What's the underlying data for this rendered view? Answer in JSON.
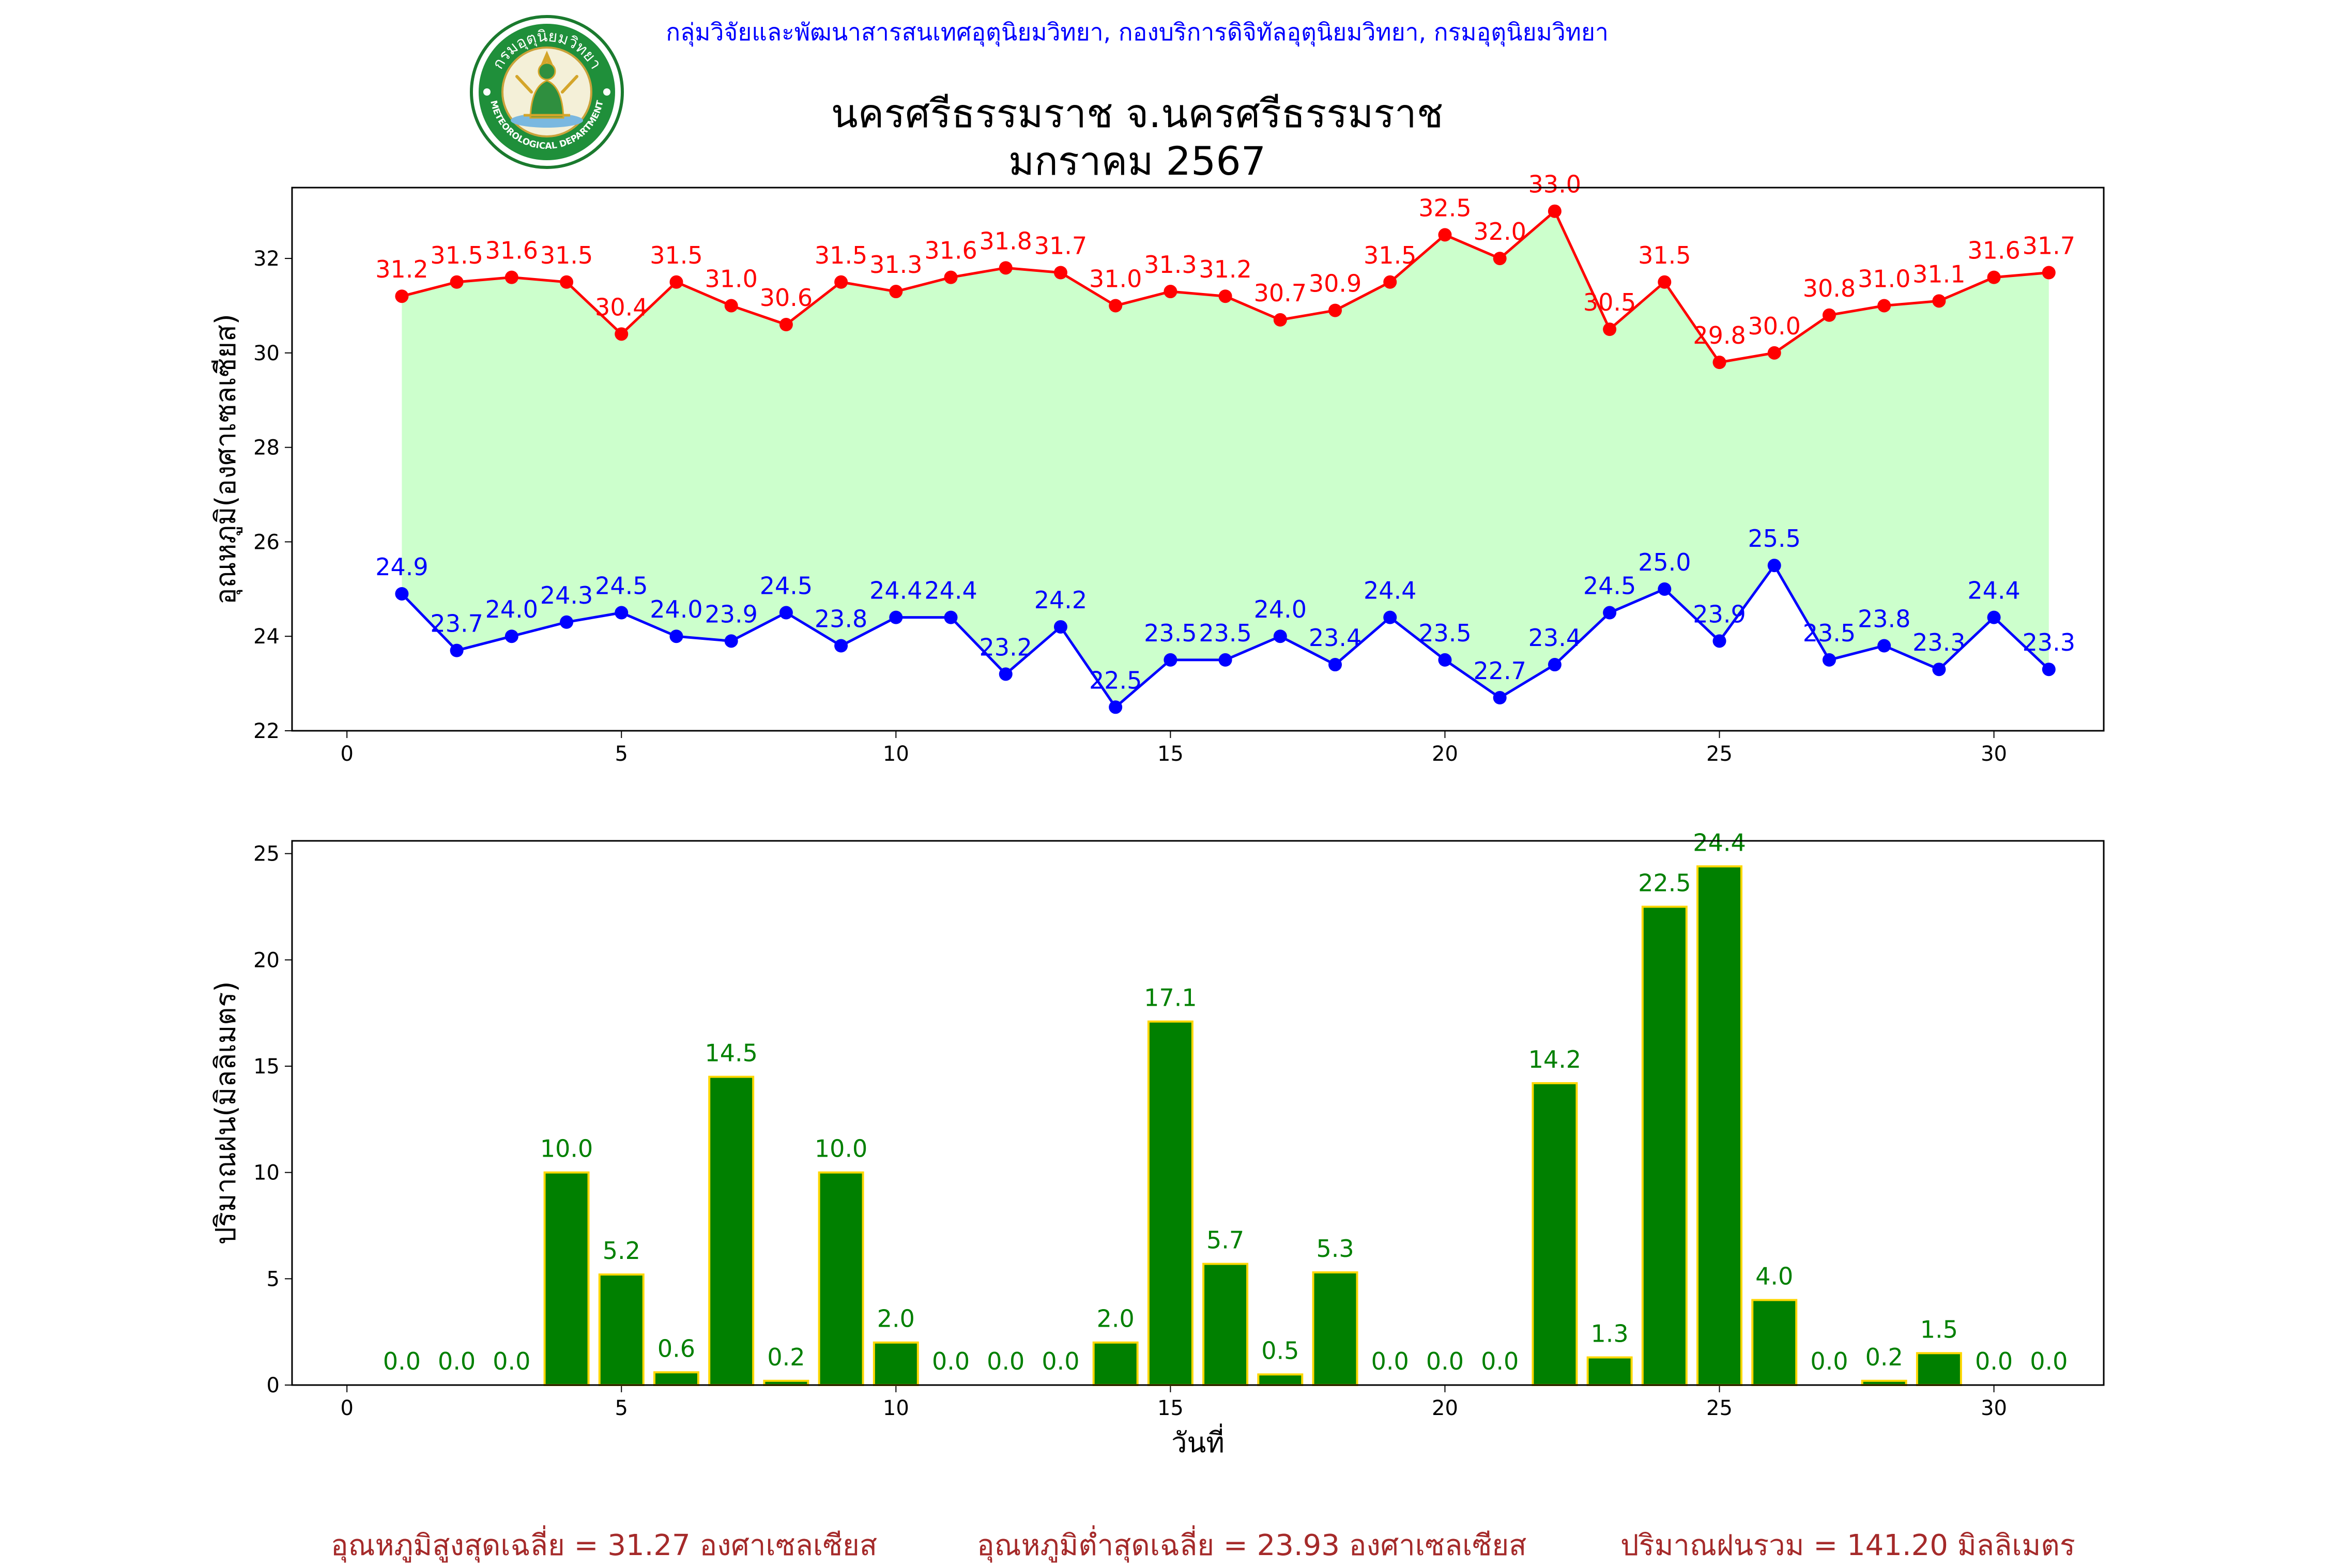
{
  "header": {
    "agency": "กลุ่มวิจัยและพัฒนาสารสนเทศอุตุนิยมวิทยา, กองบริการดิจิทัลอุตุนิยมวิทยา, กรมอุตุนิยมวิทยา",
    "title_line1": "นครศรีธรรมราช จ.นครศรีธรรมราช",
    "title_line2": "มกราคม 2567",
    "logo_text_top": "กรมอุตุนิยมวิทยา",
    "logo_text_bottom": "METEOROLOGICAL DEPARTMENT"
  },
  "chart_data": [
    {
      "type": "line",
      "ylabel": "อุณหภูมิ(องศาเซลเซียส)",
      "xlabel": "",
      "xlim": [
        -1,
        32
      ],
      "ylim": [
        22,
        33.5
      ],
      "xticks": [
        0,
        5,
        10,
        15,
        20,
        25,
        30
      ],
      "yticks": [
        22,
        24,
        26,
        28,
        30,
        32
      ],
      "x": [
        1,
        2,
        3,
        4,
        5,
        6,
        7,
        8,
        9,
        10,
        11,
        12,
        13,
        14,
        15,
        16,
        17,
        18,
        19,
        20,
        21,
        22,
        23,
        24,
        25,
        26,
        27,
        28,
        29,
        30,
        31
      ],
      "fill_between_series": true,
      "fill_color": "#ccffcc",
      "series": [
        {
          "color": "#ff0000",
          "values": [
            31.2,
            31.5,
            31.6,
            31.5,
            30.4,
            31.5,
            31.0,
            30.6,
            31.5,
            31.3,
            31.6,
            31.8,
            31.7,
            31.0,
            31.3,
            31.2,
            30.7,
            30.9,
            31.5,
            32.5,
            32.0,
            33.0,
            30.5,
            31.5,
            29.8,
            30.0,
            30.8,
            31.0,
            31.1,
            31.6,
            31.7
          ],
          "labels": [
            "31.2",
            "31.5",
            "31.6",
            "31.5",
            "30.4",
            "31.5",
            "31.0",
            "30.6",
            "31.5",
            "31.3",
            "31.6",
            "31.8",
            "31.7",
            "31.0",
            "31.3",
            "31.2",
            "30.7",
            "30.9",
            "31.5",
            "32.5",
            "32.0",
            "33.0",
            "30.5",
            "31.5",
            "29.8",
            "30.0",
            "30.8",
            "31.0",
            "31.1",
            "31.6",
            "31.7"
          ]
        },
        {
          "color": "#0000ff",
          "values": [
            24.9,
            23.7,
            24.0,
            24.3,
            24.5,
            24.0,
            23.9,
            24.5,
            23.8,
            24.4,
            24.4,
            23.2,
            24.2,
            22.5,
            23.5,
            23.5,
            24.0,
            23.4,
            24.4,
            23.5,
            22.7,
            23.4,
            24.5,
            25.0,
            23.9,
            25.5,
            23.5,
            23.8,
            23.3,
            24.4,
            23.3
          ],
          "labels": [
            "24.9",
            "23.7",
            "24.0",
            "24.3",
            "24.5",
            "24.0",
            "23.9",
            "24.5",
            "23.8",
            "24.4",
            "24.4",
            "23.2",
            "24.2",
            "22.5",
            "23.5",
            "23.5",
            "24.0",
            "23.4",
            "24.4",
            "23.5",
            "22.7",
            "23.4",
            "24.5",
            "25.0",
            "23.9",
            "25.5",
            "23.5",
            "23.8",
            "23.3",
            "24.4",
            "23.3"
          ]
        }
      ]
    },
    {
      "type": "bar",
      "ylabel": "ปริมาณฝน(มิลลิเมตร)",
      "xlabel": "วันที่",
      "xlim": [
        -1,
        32
      ],
      "ylim": [
        0,
        25.6
      ],
      "xticks": [
        0,
        5,
        10,
        15,
        20,
        25,
        30
      ],
      "yticks": [
        0,
        5,
        10,
        15,
        20,
        25
      ],
      "bar_color": "#008000",
      "bar_edge": "#ffd700",
      "x": [
        1,
        2,
        3,
        4,
        5,
        6,
        7,
        8,
        9,
        10,
        11,
        12,
        13,
        14,
        15,
        16,
        17,
        18,
        19,
        20,
        21,
        22,
        23,
        24,
        25,
        26,
        27,
        28,
        29,
        30,
        31
      ],
      "values": [
        0.0,
        0.0,
        0.0,
        10.0,
        5.2,
        0.6,
        14.5,
        0.2,
        10.0,
        2.0,
        0.0,
        0.0,
        0.0,
        2.0,
        17.1,
        5.7,
        0.5,
        5.3,
        0.0,
        0.0,
        0.0,
        14.2,
        1.3,
        22.5,
        24.4,
        4.0,
        0.0,
        0.2,
        1.5,
        0.0,
        0.0
      ],
      "labels": [
        "0.0",
        "0.0",
        "0.0",
        "10.0",
        "5.2",
        "0.6",
        "14.5",
        "0.2",
        "10.0",
        "2.0",
        "0.0",
        "0.0",
        "0.0",
        "2.0",
        "17.1",
        "5.7",
        "0.5",
        "5.3",
        "0.0",
        "0.0",
        "0.0",
        "14.2",
        "1.3",
        "22.5",
        "24.4",
        "4.0",
        "0.0",
        "0.2",
        "1.5",
        "0.0",
        "0.0"
      ]
    }
  ],
  "footer": {
    "avg_max": "อุณหภูมิสูงสุดเฉลี่ย = 31.27 องศาเซลเซียส",
    "avg_min": "อุณหภูมิต่ำสุดเฉลี่ย = 23.93 องศาเซลเซียส",
    "total_rain": "ปริมาณฝนรวม = 141.20 มิลลิเมตร"
  }
}
